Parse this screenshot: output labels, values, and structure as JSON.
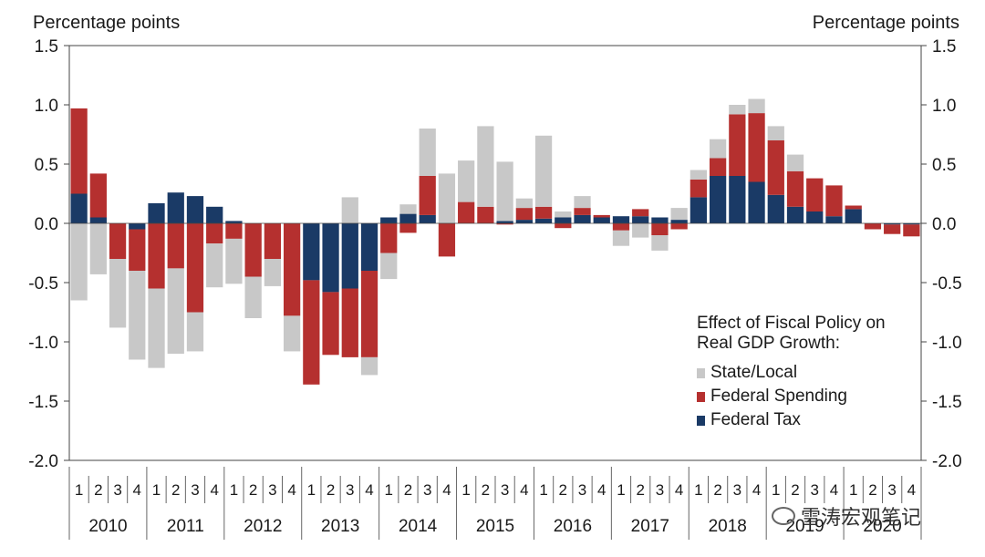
{
  "axis_titles": {
    "left": "Percentage points",
    "right": "Percentage points"
  },
  "legend": {
    "heading_line1": "Effect of Fiscal Policy on",
    "heading_line2": "Real GDP Growth:",
    "entries": [
      {
        "label": "State/Local",
        "color": "#c8c8c8"
      },
      {
        "label": "Federal Spending",
        "color": "#b5302f"
      },
      {
        "label": "Federal Tax",
        "color": "#1a3a66"
      }
    ]
  },
  "watermark": "雪涛宏观笔记",
  "chart_data": {
    "type": "bar",
    "stacked": true,
    "ylim": [
      -2.0,
      1.5
    ],
    "yticks": [
      "1.5",
      "1.0",
      "0.5",
      "0.0",
      "-0.5",
      "-1.0",
      "-1.5",
      "-2.0"
    ],
    "ytick_values": [
      1.5,
      1.0,
      0.5,
      0.0,
      -0.5,
      -1.0,
      -1.5,
      -2.0
    ],
    "quarter_labels": [
      "1",
      "2",
      "3",
      "4"
    ],
    "years": [
      "2010",
      "2011",
      "2012",
      "2013",
      "2014",
      "2015",
      "2016",
      "2017",
      "2018",
      "2019",
      "2020"
    ],
    "series": [
      {
        "name": "Federal Tax",
        "color": "#1a3a66",
        "values": [
          0.25,
          0.05,
          0.0,
          -0.05,
          0.17,
          0.26,
          0.23,
          0.14,
          0.02,
          0.0,
          0.0,
          0.0,
          -0.48,
          -0.58,
          -0.55,
          -0.4,
          0.05,
          0.08,
          0.07,
          0.0,
          0.0,
          0.0,
          0.02,
          0.03,
          0.04,
          0.05,
          0.07,
          0.05,
          0.06,
          0.06,
          0.05,
          0.03,
          0.22,
          0.4,
          0.4,
          0.35,
          0.24,
          0.14,
          0.1,
          0.06,
          0.12,
          0.0,
          -0.01,
          -0.01
        ]
      },
      {
        "name": "Federal Spending",
        "color": "#b5302f",
        "values": [
          0.72,
          0.37,
          -0.3,
          -0.35,
          -0.55,
          -0.38,
          -0.75,
          -0.17,
          -0.13,
          -0.45,
          -0.3,
          -0.78,
          -0.88,
          -0.53,
          -0.58,
          -0.73,
          -0.25,
          -0.08,
          0.33,
          -0.28,
          0.18,
          0.14,
          -0.01,
          0.1,
          0.1,
          -0.04,
          0.06,
          0.02,
          -0.06,
          0.06,
          -0.1,
          -0.05,
          0.15,
          0.15,
          0.52,
          0.58,
          0.46,
          0.3,
          0.28,
          0.26,
          0.03,
          -0.05,
          -0.08,
          -0.1
        ]
      },
      {
        "name": "State/Local",
        "color": "#c8c8c8",
        "values": [
          -0.65,
          -0.43,
          -0.58,
          -0.75,
          -0.67,
          -0.72,
          -0.33,
          -0.37,
          -0.38,
          -0.35,
          -0.23,
          -0.3,
          0.0,
          0.0,
          0.22,
          -0.15,
          -0.22,
          0.08,
          0.4,
          0.42,
          0.35,
          0.68,
          0.5,
          0.08,
          0.6,
          0.05,
          0.1,
          0.0,
          -0.13,
          -0.12,
          -0.13,
          0.1,
          0.08,
          0.16,
          0.08,
          0.12,
          0.12,
          0.14,
          0.0,
          0.0,
          0.0,
          0.0,
          0.0,
          0.0
        ]
      }
    ]
  }
}
